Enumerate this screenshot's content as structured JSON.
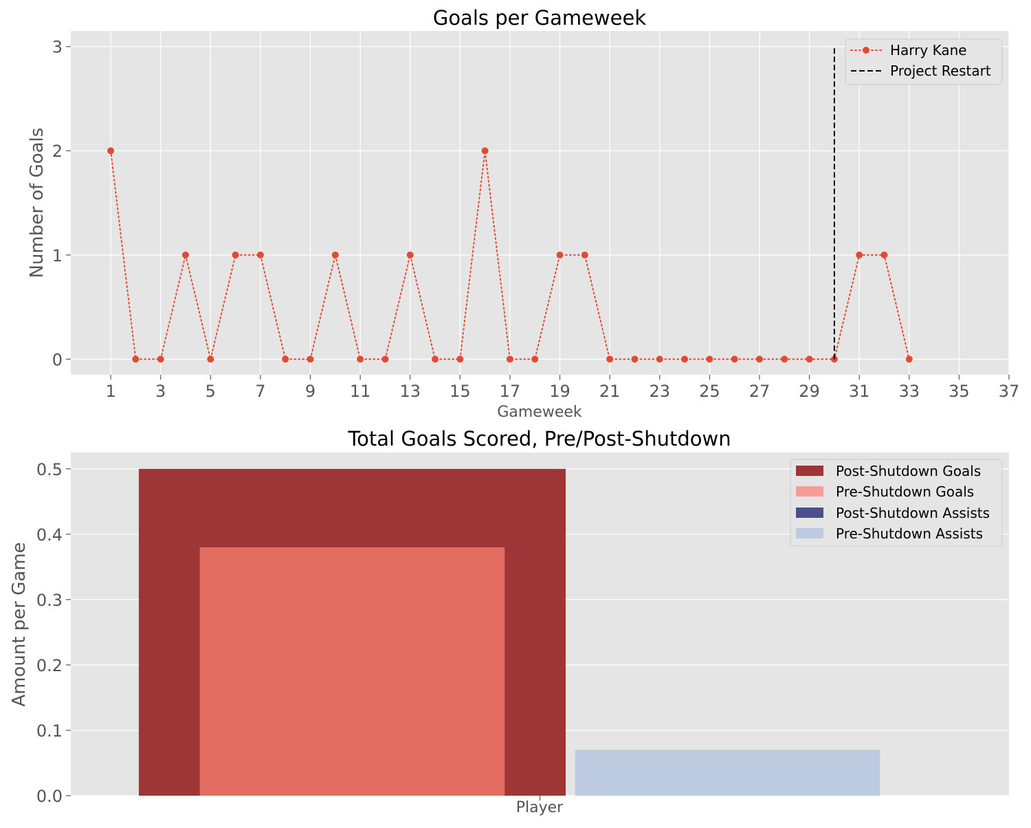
{
  "chart_data": [
    {
      "type": "line",
      "title": "Goals per Gameweek",
      "xlabel": "Gameweek",
      "ylabel": "Number of Goals",
      "xlim": [
        -0.6,
        37
      ],
      "ylim": [
        -0.15,
        3.15
      ],
      "x_ticks": [
        1,
        3,
        5,
        7,
        9,
        11,
        13,
        15,
        17,
        19,
        21,
        23,
        25,
        27,
        29,
        31,
        33,
        35,
        37
      ],
      "y_ticks": [
        0,
        1,
        2,
        3
      ],
      "grid": true,
      "legend_position": "top-right",
      "series": [
        {
          "name": "Harry Kane",
          "color": "#E24A33",
          "style": "dotted-with-markers",
          "x": [
            1,
            2,
            3,
            4,
            5,
            6,
            7,
            8,
            9,
            10,
            11,
            12,
            13,
            14,
            15,
            16,
            17,
            18,
            19,
            20,
            21,
            22,
            23,
            24,
            25,
            26,
            27,
            28,
            29,
            30,
            31,
            32,
            33
          ],
          "y": [
            2,
            0,
            0,
            1,
            0,
            1,
            1,
            0,
            0,
            1,
            0,
            0,
            1,
            0,
            0,
            2,
            0,
            0,
            1,
            1,
            0,
            0,
            0,
            0,
            0,
            0,
            0,
            0,
            0,
            0,
            1,
            1,
            0
          ]
        }
      ],
      "annotations": [
        {
          "name": "Project Restart",
          "type": "vertical-line",
          "x": 30,
          "y_from": 0,
          "y_to": 3,
          "color": "#000000",
          "style": "dashed"
        }
      ]
    },
    {
      "type": "bar",
      "title": "Total Goals Scored, Pre/Post-Shutdown",
      "xlabel": "Player",
      "ylabel": "Amount per Game",
      "ylim": [
        0,
        0.525
      ],
      "y_ticks": [
        "0.0",
        "0.1",
        "0.2",
        "0.3",
        "0.4",
        "0.5"
      ],
      "grid": true,
      "legend_position": "top-right",
      "series": [
        {
          "name": "Post-Shutdown Goals",
          "color": "#9E3536",
          "value": 0.5
        },
        {
          "name": "Pre-Shutdown Goals",
          "color": "#E46D62",
          "legend_color": "#F59E97",
          "value": 0.38
        },
        {
          "name": "Post-Shutdown Assists",
          "color": "#4B4F8C",
          "value": 0.0
        },
        {
          "name": "Pre-Shutdown Assists",
          "color": "#BDCBE0",
          "value": 0.07
        }
      ]
    }
  ]
}
